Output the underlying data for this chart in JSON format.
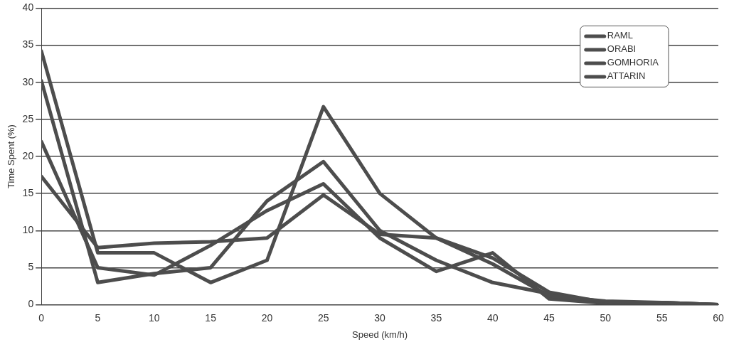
{
  "chart_data": {
    "type": "line",
    "xlabel": "Speed (km/h)",
    "ylabel": "Time Spent (%)",
    "x": [
      0,
      5,
      10,
      15,
      20,
      25,
      30,
      35,
      40,
      45,
      50,
      55,
      60
    ],
    "series": [
      {
        "name": "RAML",
        "color": "#4d4d4d",
        "values": [
          34.2,
          7.0,
          7.0,
          3.0,
          6.0,
          26.7,
          15.0,
          9.0,
          5.5,
          1.2,
          0.5,
          0.3,
          0
        ]
      },
      {
        "name": "ORABI",
        "color": "#4d4d4d",
        "values": [
          30.2,
          3.0,
          4.2,
          5.0,
          14.0,
          19.3,
          10.0,
          6.0,
          3.0,
          1.5,
          0.3,
          0.3,
          0
        ]
      },
      {
        "name": "GOMHORIA",
        "color": "#4d4d4d",
        "values": [
          22.0,
          5.0,
          4.0,
          8.0,
          12.7,
          16.3,
          9.0,
          4.5,
          7.0,
          0.8,
          0.2,
          0.2,
          0
        ]
      },
      {
        "name": "ATTARIN",
        "color": "#4d4d4d",
        "values": [
          17.3,
          7.7,
          8.3,
          8.5,
          9.0,
          14.8,
          9.5,
          9.0,
          6.3,
          1.7,
          0.3,
          0.3,
          0
        ]
      }
    ],
    "xlim": [
      0,
      60
    ],
    "xticks": [
      0,
      5,
      10,
      15,
      20,
      25,
      30,
      35,
      40,
      45,
      50,
      55,
      60
    ],
    "ylim": [
      0,
      40
    ],
    "yticks": [
      0,
      5,
      10,
      15,
      20,
      25,
      30,
      35,
      40
    ],
    "grid": "y",
    "legend": "top right",
    "marker": "none",
    "line_style": "solid"
  }
}
